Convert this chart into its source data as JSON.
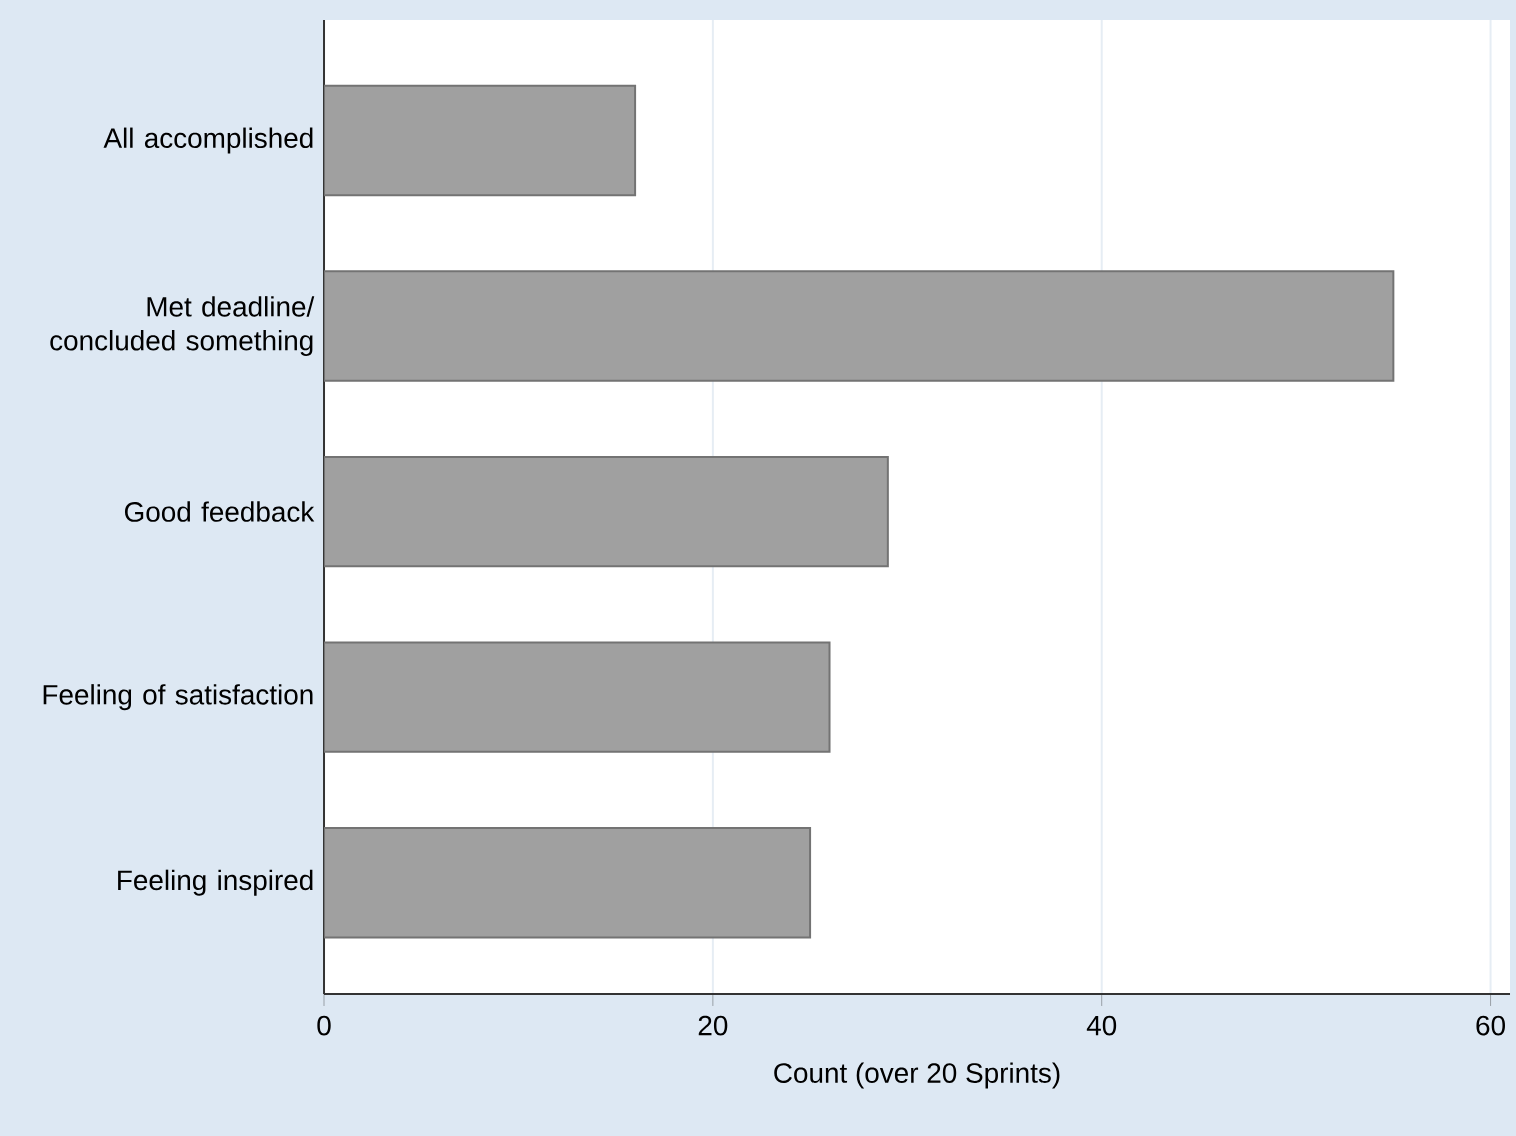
{
  "chart_data": {
    "type": "bar",
    "orientation": "horizontal",
    "categories": [
      "All accomplished",
      "Met deadline/concluded something",
      "Good feedback",
      "Feeling of satisfaction",
      "Feeling inspired"
    ],
    "values": [
      16,
      55,
      29,
      26,
      25
    ],
    "color": "#a0a0a0",
    "xlim": [
      0,
      61
    ],
    "xticks": [
      0,
      20,
      40,
      60
    ],
    "grid": "x",
    "xlabel": "Count (over 20 Sprints)"
  }
}
